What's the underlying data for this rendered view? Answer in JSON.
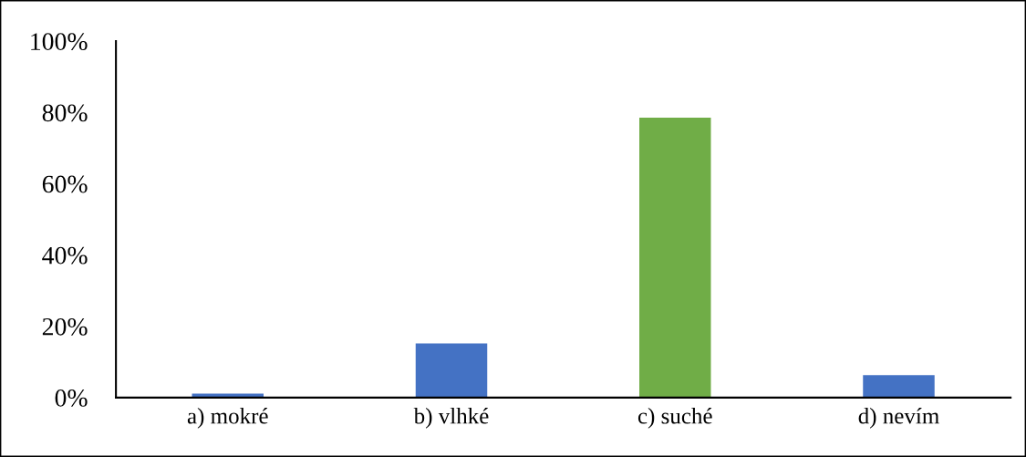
{
  "chart_data": {
    "type": "bar",
    "categories": [
      "a) mokré",
      "b) vlhké",
      "c) suché",
      "d) nevím"
    ],
    "values": [
      1.1,
      15.2,
      78.5,
      6.3
    ],
    "colors": [
      "#4472c4",
      "#4472c4",
      "#70ad47",
      "#4472c4"
    ],
    "ylim": [
      0,
      100
    ],
    "yticks": [
      {
        "value": 0,
        "label": "0%"
      },
      {
        "value": 20,
        "label": "20%"
      },
      {
        "value": 40,
        "label": "40%"
      },
      {
        "value": 60,
        "label": "60%"
      },
      {
        "value": 80,
        "label": "80%"
      },
      {
        "value": 100,
        "label": "100%"
      }
    ],
    "grid": false
  }
}
